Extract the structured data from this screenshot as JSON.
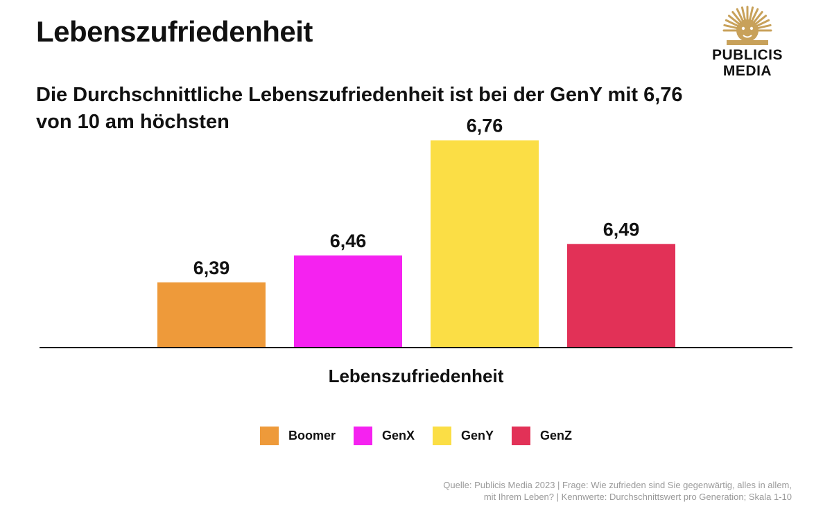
{
  "header": {
    "title": "Lebenszufriedenheit",
    "subtitle": "Die Durchschnittliche Lebenszufriedenheit ist bei der GenY mit 6,76 von 10 am höchsten"
  },
  "logo": {
    "line1": "PUBLICIS",
    "line2": "MEDIA",
    "icon": "lion-head-icon",
    "color": "#C8A15A"
  },
  "chart_data": {
    "type": "bar",
    "title": "Die Durchschnittliche Lebenszufriedenheit ist bei der GenY mit 6,76 von 10 am höchsten",
    "xlabel": "Lebenszufriedenheit",
    "ylabel": "",
    "categories": [
      "Lebenszufriedenheit"
    ],
    "series": [
      {
        "name": "Boomer",
        "values": [
          6.39
        ],
        "label": "6,39",
        "color": "#EE9A3A"
      },
      {
        "name": "GenX",
        "values": [
          6.46
        ],
        "label": "6,46",
        "color": "#F522F0"
      },
      {
        "name": "GenY",
        "values": [
          6.76
        ],
        "label": "6,76",
        "color": "#FBDE45"
      },
      {
        "name": "GenZ",
        "values": [
          6.49
        ],
        "label": "6,49",
        "color": "#E23157"
      }
    ],
    "ylim": [
      6.0,
      7.0
    ],
    "grid": false,
    "legend": "bottom"
  },
  "footnote": {
    "line1": "Quelle: Publicis Media 2023 | Frage: Wie zufrieden sind Sie gegenwärtig, alles in allem,",
    "line2": "mit Ihrem Leben? | Kennwerte: Durchschnittswert pro Generation; Skala 1-10"
  }
}
